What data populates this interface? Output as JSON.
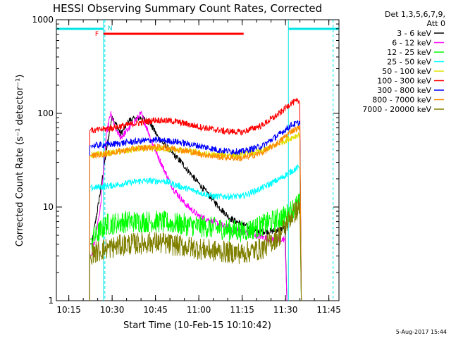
{
  "chart_data": {
    "type": "line",
    "title": "HESSI Observing Summary Count Rates, Corrected",
    "xlabel": "Start Time (10-Feb-15 10:10:42)",
    "ylabel": "Corrected Count Rate (s⁻¹ detector⁻¹)",
    "yscale": "log",
    "xlim": [
      "10:10:42",
      "11:48:30"
    ],
    "ylim": [
      1,
      1000
    ],
    "x_ticks": [
      "10:15",
      "10:30",
      "10:45",
      "11:00",
      "11:15",
      "11:30",
      "11:45"
    ],
    "y_ticks": [
      "1",
      "10",
      "100",
      "1000"
    ],
    "legend_header": [
      "Det 1,3,5,6,7,9,",
      "Att 0"
    ],
    "legend_placement": "right",
    "series": [
      {
        "name": "3 - 6 keV",
        "color": "#000000",
        "x": [
          "10:23:00",
          "10:26:00",
          "10:28:00",
          "10:30:00",
          "10:33:00",
          "10:36:00",
          "10:40:00",
          "10:43:00",
          "10:46:00",
          "10:50:00",
          "10:54:00",
          "10:58:00",
          "11:03:00",
          "11:07:00",
          "11:11:00",
          "11:15:00",
          "11:20:00",
          "11:25:00",
          "11:30:00"
        ],
        "y": [
          4,
          15,
          40,
          95,
          60,
          85,
          90,
          80,
          55,
          40,
          30,
          21,
          14,
          10,
          7.5,
          6.5,
          5.5,
          5.5,
          6
        ]
      },
      {
        "name": "6 - 12 keV",
        "color": "#ff00ff",
        "x": [
          "10:23:00",
          "10:26:00",
          "10:28:00",
          "10:29:30",
          "10:31:00",
          "10:33:00",
          "10:36:00",
          "10:40:00",
          "10:42:00",
          "10:45:00",
          "10:48:00",
          "10:51:00",
          "10:55:00",
          "11:00:00",
          "11:05:00",
          "11:10:00",
          "11:15:00",
          "11:20:00",
          "11:25:00",
          "11:30:00"
        ],
        "y": [
          3,
          10,
          60,
          100,
          70,
          55,
          70,
          100,
          70,
          40,
          25,
          16,
          11,
          8,
          7,
          6,
          5.5,
          5,
          4.5,
          4.5
        ]
      },
      {
        "name": "12 - 25 keV",
        "color": "#00ff00",
        "x": [
          "10:23:00",
          "10:28:00",
          "10:35:00",
          "10:45:00",
          "10:55:00",
          "11:05:00",
          "11:15:00",
          "11:20:00",
          "11:25:00",
          "11:30:00",
          "11:33:00",
          "11:35:00"
        ],
        "y": [
          4.5,
          6.5,
          7,
          7,
          6.5,
          6,
          5.5,
          6,
          7,
          8,
          10,
          11
        ]
      },
      {
        "name": "25 - 50 keV",
        "color": "#00ffff",
        "x": [
          "10:23:00",
          "10:30:00",
          "10:40:00",
          "10:48:00",
          "10:55:00",
          "11:05:00",
          "11:15:00",
          "11:22:00",
          "11:28:00",
          "11:32:00",
          "11:35:00"
        ],
        "y": [
          16,
          17,
          19,
          19,
          16,
          13,
          13,
          16,
          20,
          24,
          27
        ]
      },
      {
        "name": "50 - 100 keV",
        "color": "#e0e000",
        "x": [
          "10:23:00",
          "10:30:00",
          "10:40:00",
          "10:48:00",
          "10:55:00",
          "11:05:00",
          "11:15:00",
          "11:22:00",
          "11:28:00",
          "11:32:00",
          "11:35:00"
        ],
        "y": [
          36,
          38,
          42,
          42,
          40,
          36,
          36,
          40,
          48,
          55,
          60
        ]
      },
      {
        "name": "100 - 300 keV",
        "color": "#ff0000",
        "x": [
          "10:23:00",
          "10:30:00",
          "10:38:00",
          "10:45:00",
          "10:52:00",
          "11:00:00",
          "11:08:00",
          "11:15:00",
          "11:22:00",
          "11:28:00",
          "11:32:00",
          "11:35:00"
        ],
        "y": [
          65,
          70,
          78,
          85,
          82,
          72,
          65,
          63,
          75,
          100,
          130,
          135
        ]
      },
      {
        "name": "300 - 800 keV",
        "color": "#0000ff",
        "x": [
          "10:23:00",
          "10:30:00",
          "10:38:00",
          "10:45:00",
          "10:52:00",
          "11:00:00",
          "11:08:00",
          "11:15:00",
          "11:22:00",
          "11:28:00",
          "11:32:00",
          "11:35:00"
        ],
        "y": [
          45,
          47,
          50,
          52,
          50,
          45,
          40,
          39,
          45,
          60,
          75,
          80
        ]
      },
      {
        "name": "800 - 7000 keV",
        "color": "#ff8c00",
        "x": [
          "10:23:00",
          "10:30:00",
          "10:38:00",
          "10:45:00",
          "10:52:00",
          "11:00:00",
          "11:08:00",
          "11:15:00",
          "11:22:00",
          "11:28:00",
          "11:32:00",
          "11:35:00"
        ],
        "y": [
          35,
          38,
          42,
          44,
          42,
          37,
          34,
          33,
          38,
          50,
          65,
          70
        ]
      },
      {
        "name": "7000 - 20000 keV",
        "color": "#808000",
        "x": [
          "10:23:00",
          "10:28:00",
          "10:35:00",
          "10:45:00",
          "10:55:00",
          "11:05:00",
          "11:15:00",
          "11:22:00",
          "11:28:00",
          "11:32:00",
          "11:35:00"
        ],
        "y": [
          3.2,
          3.6,
          4,
          4.2,
          3.8,
          3.4,
          3.2,
          3.6,
          5,
          8,
          10
        ]
      }
    ],
    "annotations": {
      "F_label": "F",
      "N_label": "N",
      "flare_bar": {
        "x0": "10:27:00",
        "x1": "11:15:30",
        "color": "#ff0000"
      },
      "night_bars": [
        {
          "x0": "10:10:42",
          "x1": "10:27:00",
          "color": "#00e5e5"
        },
        {
          "x0": "11:31:00",
          "x1": "11:48:30",
          "color": "#00e5e5"
        }
      ],
      "night_solid_lines": [
        "10:27:00",
        "11:31:00"
      ],
      "night_dashed_lines": [
        "10:27:00",
        "11:46:00"
      ]
    },
    "grid": false,
    "footer_date": "5-Aug-2017 15:44"
  }
}
